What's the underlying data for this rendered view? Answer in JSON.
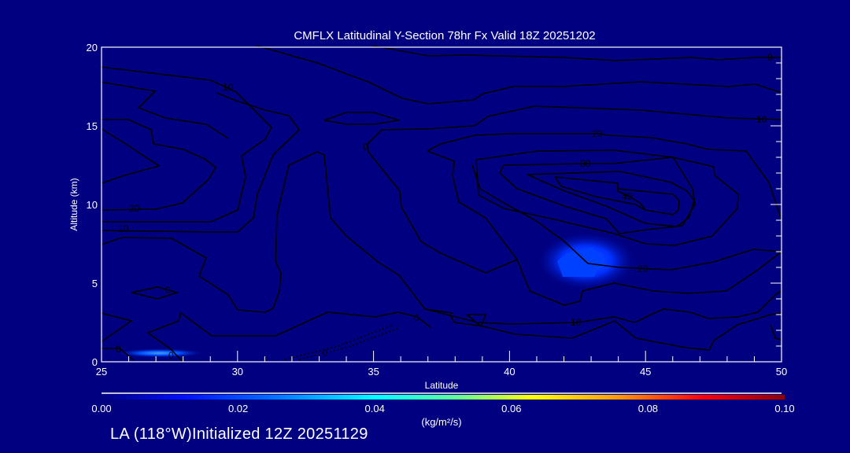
{
  "chart_data": {
    "type": "contour",
    "title": "CMFLX Latitudinal Y-Section 78hr  Fx Valid 18Z 20251202",
    "xlabel": "Latitude",
    "ylabel": "Altitude (km)",
    "xlim": [
      25,
      50
    ],
    "ylim": [
      0,
      20
    ],
    "xticks": [
      "25",
      "30",
      "35",
      "40",
      "45",
      "50"
    ],
    "yticks": [
      "0",
      "5",
      "10",
      "15",
      "20"
    ],
    "contour_levels": [
      0,
      10,
      20,
      30,
      40
    ],
    "contour_labels": [
      "0",
      "10",
      "10",
      "20",
      "10",
      "20",
      "30",
      "40",
      "20",
      "10",
      "0",
      "0",
      "0",
      "0",
      "0",
      "0"
    ],
    "shading_maxima": [
      {
        "latitude": 43,
        "altitude_km": 6,
        "value": 0.015
      },
      {
        "latitude": 27,
        "altitude_km": 0.3,
        "value": 0.012
      }
    ],
    "colorbar": {
      "min": 0.0,
      "max": 0.1,
      "ticks": [
        "0.00",
        "0.02",
        "0.04",
        "0.06",
        "0.08",
        "0.10"
      ],
      "unit": "(kg/m²/s)",
      "colors": [
        "#000080",
        "#0000ff",
        "#00ffff",
        "#ffff00",
        "#ff0000",
        "#800000"
      ]
    }
  },
  "footer": "LA (118°W)Initialized 12Z 20251129",
  "colors": {
    "background": "#000080",
    "contour": "#000000",
    "axes": "#ffffff"
  }
}
